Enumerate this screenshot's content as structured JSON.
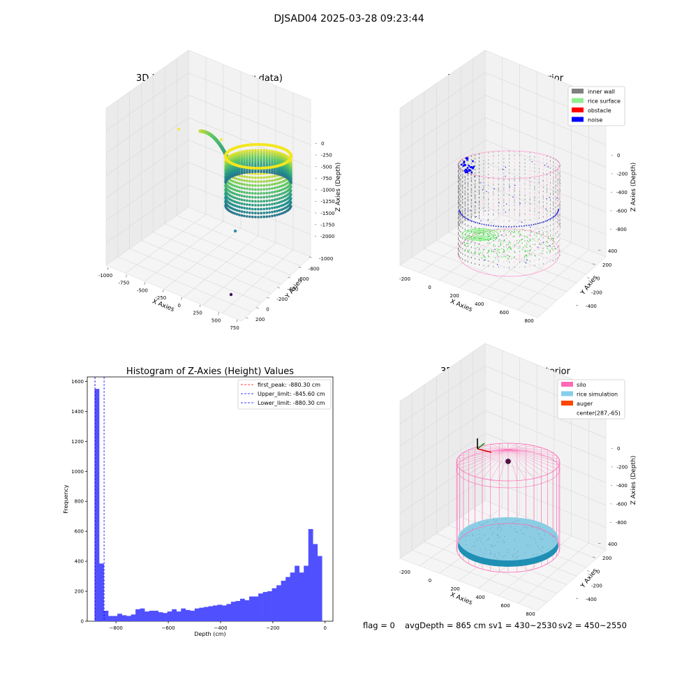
{
  "figure": {
    "suptitle": "DJSAD04 2025-03-28 09:23:44",
    "status": {
      "flag": "flag = 0",
      "avg_depth": "avgDepth = 865 cm",
      "sv1": "sv1 = 430~2530",
      "sv2": "sv2 = 450~2550"
    }
  },
  "panels": {
    "raw": {
      "title": "3D Plot of Silo Interior(row data)",
      "xlabel": "X Axies",
      "ylabel": "Y Axies",
      "zlabel": "Z Axies (Depth)",
      "xticks": [
        "-1000",
        "-750",
        "-500",
        "-250",
        "0",
        "250",
        "500",
        "750"
      ],
      "yticks": [
        "-1000",
        "-800",
        "-600",
        "-400",
        "-200",
        "0",
        "200"
      ],
      "zticks": [
        "-2000",
        "-1750",
        "-1500",
        "-1250",
        "-1000",
        "-750",
        "-500",
        "-250",
        "0"
      ]
    },
    "classify": {
      "title": "3D classify of Silo Interior",
      "xlabel": "X Axies",
      "ylabel": "Y Axies",
      "zlabel": "Z Axies (Depth)",
      "xticks": [
        "-200",
        "0",
        "200",
        "400",
        "600",
        "800"
      ],
      "yticks": [
        "-400",
        "-200",
        "0",
        "200",
        "400"
      ],
      "zticks": [
        "-800",
        "-600",
        "-400",
        "-200",
        "0"
      ],
      "legend": [
        {
          "label": "inner wall",
          "color": "#808080"
        },
        {
          "label": "rice surface",
          "color": "#90ee90"
        },
        {
          "label": "obstacle",
          "color": "#ff0000"
        },
        {
          "label": "noise",
          "color": "#0000ff"
        }
      ]
    },
    "simulation": {
      "title": "3D simulation of Silo Interior",
      "xlabel": "X Axies",
      "ylabel": "Y Axies",
      "zlabel": "Z Axies (Depth)",
      "xticks": [
        "-200",
        "0",
        "200",
        "400",
        "600",
        "800"
      ],
      "yticks": [
        "-400",
        "-200",
        "0",
        "200",
        "400"
      ],
      "zticks": [
        "-800",
        "-600",
        "-400",
        "-200",
        "0"
      ],
      "legend": [
        {
          "label": "silo",
          "color": "#ff69b4"
        },
        {
          "label": "rice simulation",
          "color": "#87ceeb"
        },
        {
          "label": "auger",
          "color": "#ff4500"
        },
        {
          "label": "center(287,-65)",
          "color": ""
        }
      ]
    }
  },
  "chart_data": [
    {
      "type": "bar",
      "title": "Histogram of Z-Axies (Height) Values",
      "xlabel": "Depth (cm)",
      "ylabel": "Frequency",
      "xlim": [
        -910,
        30
      ],
      "ylim": [
        0,
        1630
      ],
      "xticks": [
        -800,
        -600,
        -400,
        -200,
        0
      ],
      "yticks": [
        0,
        200,
        400,
        600,
        800,
        1000,
        1200,
        1400,
        1600
      ],
      "bin_start": -882,
      "bin_width": 17.4,
      "color": "#5050ff",
      "values": [
        1550,
        385,
        70,
        35,
        35,
        50,
        40,
        35,
        45,
        80,
        85,
        65,
        70,
        70,
        60,
        55,
        65,
        80,
        65,
        85,
        75,
        70,
        85,
        90,
        95,
        100,
        105,
        110,
        105,
        115,
        130,
        135,
        150,
        140,
        165,
        165,
        185,
        195,
        200,
        220,
        240,
        270,
        295,
        325,
        370,
        325,
        370,
        615,
        515,
        435
      ],
      "vlines": [
        {
          "label": "first_peak: -880.30 cm",
          "x": -880.3,
          "color": "#ff0000"
        },
        {
          "label": "Upper_limit: -845.60 cm",
          "x": -845.6,
          "color": "#0000ff"
        },
        {
          "label": "Lower_limit: -880.30 cm",
          "x": -880.3,
          "color": "#0000ff"
        }
      ]
    }
  ]
}
